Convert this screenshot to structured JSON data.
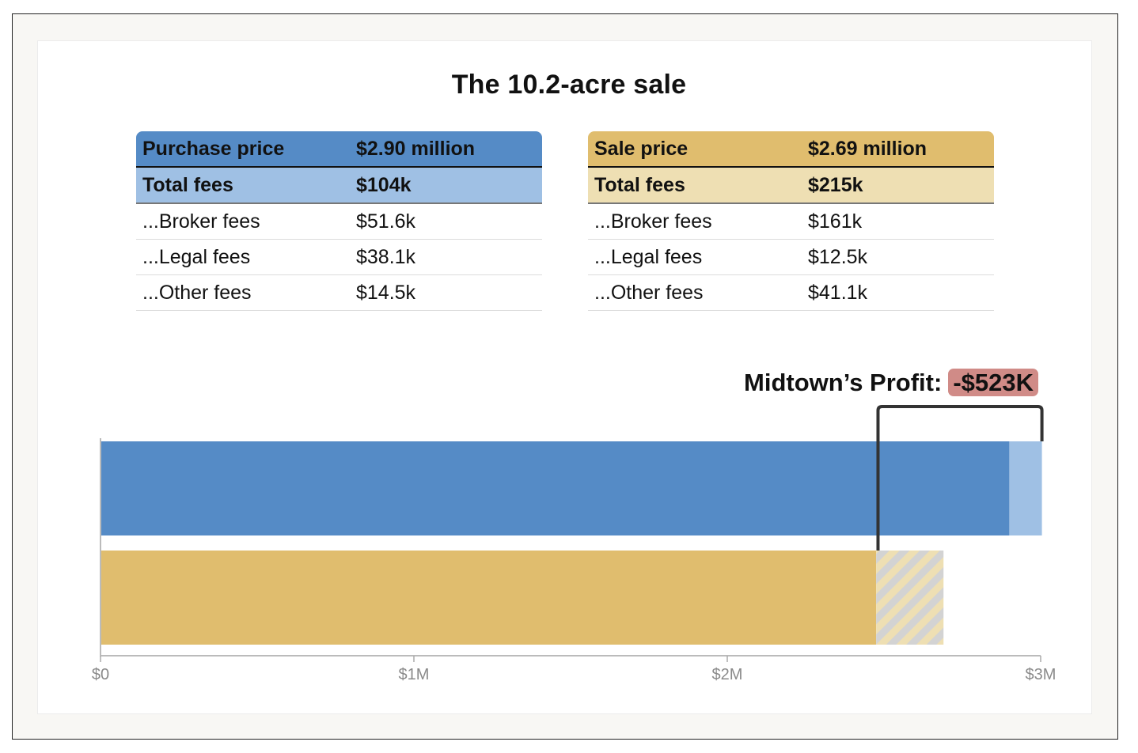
{
  "title": "The 10.2-acre sale",
  "purchase_table": {
    "header_label": "Purchase price",
    "header_value": "$2.90 million",
    "total_label": "Total fees",
    "total_value": "$104k",
    "rows": [
      {
        "label": "...Broker fees",
        "value": "$51.6k"
      },
      {
        "label": "...Legal fees",
        "value": "$38.1k"
      },
      {
        "label": "...Other fees",
        "value": "$14.5k"
      }
    ]
  },
  "sale_table": {
    "header_label": "Sale price",
    "header_value": "$2.69 million",
    "total_label": "Total fees",
    "total_value": "$215k",
    "rows": [
      {
        "label": "...Broker fees",
        "value": "$161k"
      },
      {
        "label": "...Legal fees",
        "value": "$12.5k"
      },
      {
        "label": "...Other fees",
        "value": "$41.1k"
      }
    ]
  },
  "profit": {
    "label": "Midtown’s Profit:",
    "value": "-$523K"
  },
  "chart_data": {
    "type": "bar",
    "orientation": "horizontal",
    "stacked": true,
    "xlim": [
      0,
      3000000
    ],
    "xticks": [
      {
        "value": 0,
        "label": "$0"
      },
      {
        "value": 1000000,
        "label": "$1M"
      },
      {
        "value": 2000000,
        "label": "$2M"
      },
      {
        "value": 3000000,
        "label": "$3M"
      }
    ],
    "bars": [
      {
        "segments": [
          {
            "value": 2900000,
            "color": "#558bc6",
            "pattern": "solid"
          },
          {
            "value": 104000,
            "color": "#9fc0e4",
            "pattern": "solid"
          }
        ]
      },
      {
        "segments": [
          {
            "value": 2475000,
            "color": "#e0bd6e",
            "pattern": "solid"
          },
          {
            "value": 215000,
            "color": "#eedfb3",
            "pattern": "hatched"
          }
        ]
      }
    ],
    "bracket": {
      "from": 2481000,
      "to": 3004000
    },
    "grid": false
  }
}
